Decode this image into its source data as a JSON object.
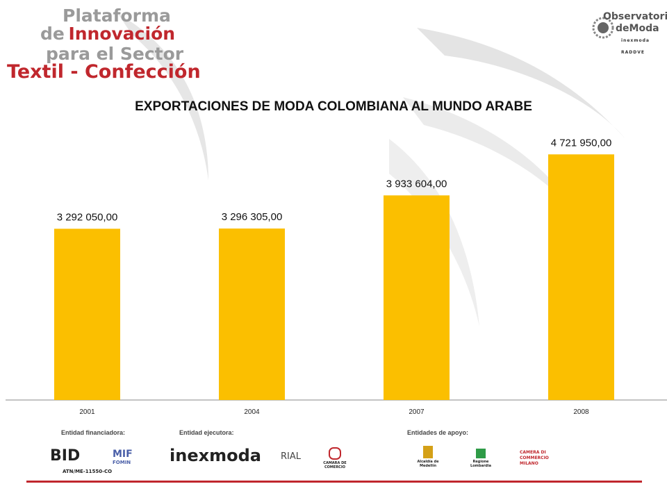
{
  "header": {
    "brand_lines": [
      "Plataforma",
      "de",
      "Innovación",
      "para el Sector",
      "Textil - Confección"
    ],
    "partner_logo": {
      "line1": "Observatorio",
      "line2": "deModa",
      "line3": "inexmoda RADDVE"
    }
  },
  "chart_data": {
    "type": "bar",
    "title": "EXPORTACIONES DE MODA COLOMBIANA AL MUNDO ARABE",
    "categories": [
      "2001",
      "2004",
      "2007",
      "2008"
    ],
    "values": [
      3292050.0,
      3296305.0,
      3933604.0,
      4721950.0
    ],
    "value_labels": [
      "3 292 050,00",
      "3 296 305,00",
      "3 933 604,00",
      "4 721 950,00"
    ],
    "xlabel": "",
    "ylabel": "",
    "ylim": [
      0,
      5300000
    ],
    "grid": false,
    "legend": "none",
    "bar_color": "#fbbf00"
  },
  "footer": {
    "financing_label": "Entidad financiadora:",
    "executing_label": "Entidad ejecutora:",
    "support_label": "Entidades de apoyo:",
    "logos": {
      "bid": "BID",
      "bid_code": "ATN/ME-11550-CO",
      "mif": "MIF",
      "mif_sub": "FOMIN",
      "inexmoda": "inexmoda",
      "rial": "RIAL",
      "camara": "CAMARA DE COMERCIO",
      "alcaldia": "Alcaldía de Medellín",
      "regione": "Regione Lombardia",
      "camera": "CAMERA DI COMMERCIO MILANO"
    },
    "accent_color": "#c0272d"
  }
}
